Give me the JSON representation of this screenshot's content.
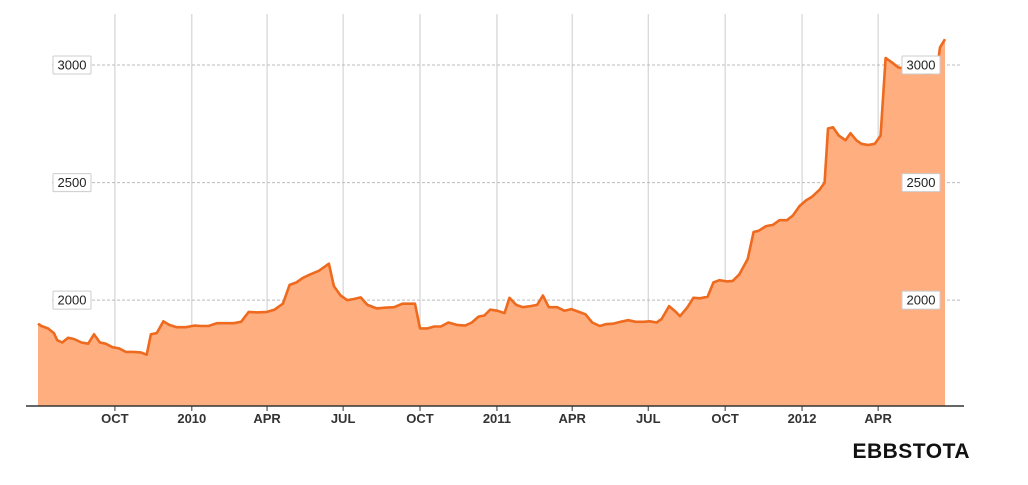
{
  "chart_data": {
    "type": "area",
    "title": "",
    "ticker_label": "EBBSTOTA",
    "xlabel": "",
    "ylabel": "",
    "x_range": [
      "2009-07-01",
      "2012-06-20"
    ],
    "ylim": [
      1550,
      3200
    ],
    "y_ticks": [
      2000,
      2500,
      3000
    ],
    "x_ticks": [
      {
        "label": "OCT",
        "date": "2009-10-01"
      },
      {
        "label": "2010",
        "date": "2010-01-01"
      },
      {
        "label": "APR",
        "date": "2010-04-01"
      },
      {
        "label": "JUL",
        "date": "2010-07-01"
      },
      {
        "label": "OCT",
        "date": "2010-10-01"
      },
      {
        "label": "2011",
        "date": "2011-01-01"
      },
      {
        "label": "APR",
        "date": "2011-04-01"
      },
      {
        "label": "JUL",
        "date": "2011-07-01"
      },
      {
        "label": "OCT",
        "date": "2011-10-01"
      },
      {
        "label": "2012",
        "date": "2012-01-01"
      },
      {
        "label": "APR",
        "date": "2012-04-01"
      }
    ],
    "grid": true,
    "colors": {
      "line": "#ee6a1e",
      "fill": "#ffae80",
      "grid": "#cccccc"
    },
    "series": [
      {
        "points": [
          [
            "2009-07-01",
            1900
          ],
          [
            "2009-07-05",
            1890
          ],
          [
            "2009-07-13",
            1880
          ],
          [
            "2009-07-20",
            1860
          ],
          [
            "2009-07-24",
            1830
          ],
          [
            "2009-07-30",
            1820
          ],
          [
            "2009-08-06",
            1840
          ],
          [
            "2009-08-13",
            1835
          ],
          [
            "2009-08-22",
            1820
          ],
          [
            "2009-08-30",
            1815
          ],
          [
            "2009-09-06",
            1855
          ],
          [
            "2009-09-13",
            1820
          ],
          [
            "2009-09-20",
            1815
          ],
          [
            "2009-09-28",
            1800
          ],
          [
            "2009-10-06",
            1795
          ],
          [
            "2009-10-14",
            1780
          ],
          [
            "2009-10-23",
            1780
          ],
          [
            "2009-11-01",
            1778
          ],
          [
            "2009-11-08",
            1768
          ],
          [
            "2009-11-13",
            1855
          ],
          [
            "2009-11-20",
            1860
          ],
          [
            "2009-11-28",
            1910
          ],
          [
            "2009-12-05",
            1895
          ],
          [
            "2009-12-14",
            1885
          ],
          [
            "2009-12-25",
            1885
          ],
          [
            "2010-01-04",
            1892
          ],
          [
            "2010-01-12",
            1890
          ],
          [
            "2010-01-21",
            1890
          ],
          [
            "2010-01-31",
            1902
          ],
          [
            "2010-02-10",
            1902
          ],
          [
            "2010-02-20",
            1902
          ],
          [
            "2010-03-01",
            1908
          ],
          [
            "2010-03-10",
            1950
          ],
          [
            "2010-03-20",
            1948
          ],
          [
            "2010-04-01",
            1950
          ],
          [
            "2010-04-10",
            1960
          ],
          [
            "2010-04-20",
            1985
          ],
          [
            "2010-04-28",
            2065
          ],
          [
            "2010-05-06",
            2075
          ],
          [
            "2010-05-14",
            2095
          ],
          [
            "2010-05-23",
            2110
          ],
          [
            "2010-06-02",
            2125
          ],
          [
            "2010-06-10",
            2145
          ],
          [
            "2010-06-14",
            2155
          ],
          [
            "2010-06-20",
            2060
          ],
          [
            "2010-06-28",
            2020
          ],
          [
            "2010-07-06",
            2000
          ],
          [
            "2010-07-14",
            2005
          ],
          [
            "2010-07-22",
            2012
          ],
          [
            "2010-07-30",
            1980
          ],
          [
            "2010-08-10",
            1965
          ],
          [
            "2010-08-20",
            1968
          ],
          [
            "2010-08-31",
            1970
          ],
          [
            "2010-09-10",
            1985
          ],
          [
            "2010-09-25",
            1985
          ],
          [
            "2010-10-01",
            1880
          ],
          [
            "2010-10-10",
            1880
          ],
          [
            "2010-10-18",
            1888
          ],
          [
            "2010-10-26",
            1888
          ],
          [
            "2010-11-04",
            1905
          ],
          [
            "2010-11-14",
            1895
          ],
          [
            "2010-11-24",
            1892
          ],
          [
            "2010-12-02",
            1905
          ],
          [
            "2010-12-10",
            1930
          ],
          [
            "2010-12-17",
            1935
          ],
          [
            "2010-12-24",
            1960
          ],
          [
            "2011-01-02",
            1955
          ],
          [
            "2011-01-10",
            1945
          ],
          [
            "2011-01-16",
            2010
          ],
          [
            "2011-01-24",
            1980
          ],
          [
            "2011-02-01",
            1970
          ],
          [
            "2011-02-10",
            1975
          ],
          [
            "2011-02-18",
            1980
          ],
          [
            "2011-02-25",
            2020
          ],
          [
            "2011-03-04",
            1970
          ],
          [
            "2011-03-14",
            1970
          ],
          [
            "2011-03-23",
            1955
          ],
          [
            "2011-03-31",
            1962
          ],
          [
            "2011-04-09",
            1950
          ],
          [
            "2011-04-17",
            1940
          ],
          [
            "2011-04-25",
            1905
          ],
          [
            "2011-05-04",
            1890
          ],
          [
            "2011-05-11",
            1898
          ],
          [
            "2011-05-20",
            1900
          ],
          [
            "2011-05-29",
            1908
          ],
          [
            "2011-06-07",
            1915
          ],
          [
            "2011-06-16",
            1908
          ],
          [
            "2011-06-25",
            1908
          ],
          [
            "2011-07-03",
            1910
          ],
          [
            "2011-07-11",
            1905
          ],
          [
            "2011-07-17",
            1920
          ],
          [
            "2011-07-26",
            1975
          ],
          [
            "2011-08-03",
            1950
          ],
          [
            "2011-08-08",
            1932
          ],
          [
            "2011-08-17",
            1970
          ],
          [
            "2011-08-24",
            2010
          ],
          [
            "2011-09-01",
            2008
          ],
          [
            "2011-09-10",
            2015
          ],
          [
            "2011-09-17",
            2075
          ],
          [
            "2011-09-24",
            2085
          ],
          [
            "2011-10-03",
            2080
          ],
          [
            "2011-10-10",
            2082
          ],
          [
            "2011-10-18",
            2110
          ],
          [
            "2011-10-28",
            2175
          ],
          [
            "2011-11-04",
            2290
          ],
          [
            "2011-11-10",
            2295
          ],
          [
            "2011-11-19",
            2315
          ],
          [
            "2011-11-27",
            2320
          ],
          [
            "2011-12-05",
            2340
          ],
          [
            "2011-12-14",
            2340
          ],
          [
            "2011-12-21",
            2360
          ],
          [
            "2011-12-29",
            2400
          ],
          [
            "2012-01-06",
            2425
          ],
          [
            "2012-01-13",
            2440
          ],
          [
            "2012-01-22",
            2470
          ],
          [
            "2012-01-28",
            2500
          ],
          [
            "2012-02-01",
            2730
          ],
          [
            "2012-02-07",
            2735
          ],
          [
            "2012-02-14",
            2700
          ],
          [
            "2012-02-22",
            2680
          ],
          [
            "2012-02-28",
            2710
          ],
          [
            "2012-03-06",
            2680
          ],
          [
            "2012-03-12",
            2665
          ],
          [
            "2012-03-20",
            2660
          ],
          [
            "2012-03-28",
            2665
          ],
          [
            "2012-04-04",
            2700
          ],
          [
            "2012-04-10",
            3030
          ],
          [
            "2012-04-18",
            3010
          ],
          [
            "2012-04-25",
            2990
          ],
          [
            "2012-05-02",
            2985
          ],
          [
            "2012-05-09",
            2965
          ],
          [
            "2012-05-16",
            2975
          ],
          [
            "2012-05-25",
            2965
          ],
          [
            "2012-06-03",
            2965
          ],
          [
            "2012-06-10",
            2970
          ],
          [
            "2012-06-14",
            3075
          ],
          [
            "2012-06-20",
            3110
          ]
        ]
      }
    ]
  }
}
